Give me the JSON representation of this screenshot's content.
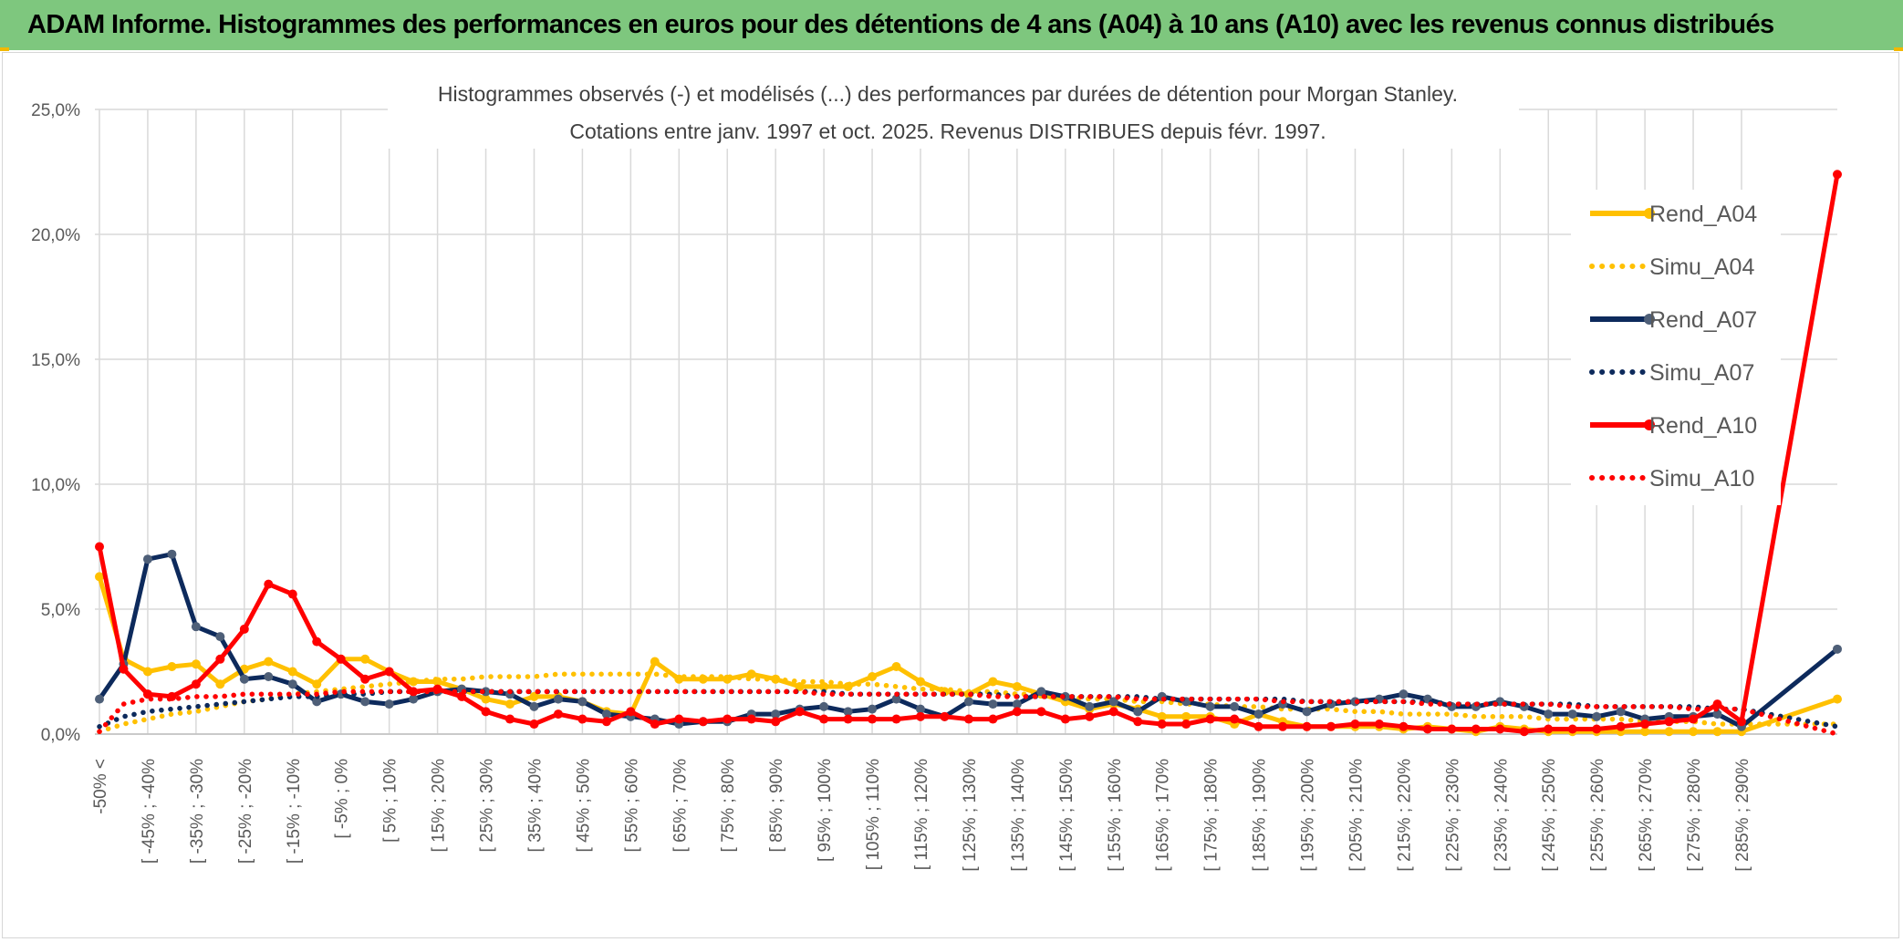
{
  "header": {
    "title": "ADAM Informe. Histogrammes des performances en euros pour des détentions de 4 ans (A04) à 10 ans (A10) avec les revenus connus distribués"
  },
  "colors": {
    "banner": "#7ec77e",
    "rend_a04": "#ffc000",
    "rend_a07": "#0d2a5c",
    "rend_a07_marker": "#4e5f78",
    "rend_a10": "#ff0000",
    "grid": "#d9d9d9",
    "axis_text": "#595959",
    "title_text": "#404040"
  },
  "chart_data": {
    "type": "line",
    "title": "Histogrammes observés (-) et modélisés (...) des performances par durées de détention pour Morgan Stanley.",
    "subtitle": "Cotations entre janv. 1997 et oct. 2025. Revenus DISTRIBUES depuis févr. 1997.",
    "xlabel": "",
    "ylabel": "",
    "ylim": [
      0,
      25
    ],
    "yticks": [
      "0,0%",
      "5,0%",
      "10,0%",
      "15,0%",
      "20,0%",
      "25,0%"
    ],
    "grid": true,
    "legend_position": "right",
    "xtick_labels": [
      "-50% <",
      "[ -45% ; -40%",
      "[ -35% ; -30%",
      "[ -25% ; -20%",
      "[ -15% ; -10%",
      "[ -5% ; 0%",
      "[ 5% ; 10%",
      "[ 15% ; 20%",
      "[ 25% ; 30%",
      "[ 35% ; 40%",
      "[ 45% ; 50%",
      "[ 55% ; 60%",
      "[ 65% ; 70%",
      "[ 75% ; 80%",
      "[ 85% ; 90%",
      "[ 95% ; 100%",
      "[ 105% ; 110%",
      "[ 115% ; 120%",
      "[ 125% ; 130%",
      "[ 135% ; 140%",
      "[ 145% ; 150%",
      "[ 155% ; 160%",
      "[ 165% ; 170%",
      "[ 175% ; 180%",
      "[ 185% ; 190%",
      "[ 195% ; 200%",
      "[ 205% ; 210%",
      "[ 215% ; 220%",
      "[ 225% ; 230%",
      "[ 235% ; 240%",
      "[ 245% ; 250%",
      "[ 255% ; 260%",
      "[ 265% ; 270%",
      "[ 275% ; 280%",
      "[ 285% ; 290%"
    ],
    "n_points": 70,
    "series": [
      {
        "name": "Rend_A04",
        "style": "solid",
        "color": "#ffc000",
        "marker": true,
        "values": [
          6.3,
          3.0,
          2.5,
          2.7,
          2.8,
          2.0,
          2.6,
          2.9,
          2.5,
          2.0,
          3.0,
          3.0,
          2.5,
          2.1,
          2.1,
          1.8,
          1.4,
          1.2,
          1.5,
          1.5,
          1.3,
          0.9,
          0.8,
          2.9,
          2.2,
          2.2,
          2.2,
          2.4,
          2.2,
          1.9,
          1.9,
          1.9,
          2.3,
          2.7,
          2.1,
          1.7,
          1.6,
          2.1,
          1.9,
          1.6,
          1.3,
          1.0,
          1.2,
          1.0,
          0.7,
          0.7,
          0.7,
          0.4,
          0.8,
          0.5,
          0.3,
          0.3,
          0.3,
          0.3,
          0.2,
          0.3,
          0.2,
          0.1,
          0.3,
          0.2,
          0.1,
          0.1,
          0.1,
          0.1,
          0.1,
          0.1,
          0.1,
          0.1,
          0.1,
          1.4
        ]
      },
      {
        "name": "Simu_A04",
        "style": "dotted",
        "color": "#ffc000",
        "marker": false,
        "values": [
          0.1,
          0.4,
          0.6,
          0.8,
          0.9,
          1.1,
          1.3,
          1.4,
          1.6,
          1.7,
          1.8,
          1.9,
          2.0,
          2.1,
          2.2,
          2.2,
          2.3,
          2.3,
          2.3,
          2.4,
          2.4,
          2.4,
          2.4,
          2.4,
          2.3,
          2.3,
          2.3,
          2.2,
          2.2,
          2.1,
          2.1,
          2.0,
          2.0,
          1.9,
          1.8,
          1.8,
          1.7,
          1.7,
          1.6,
          1.6,
          1.5,
          1.4,
          1.4,
          1.3,
          1.3,
          1.2,
          1.2,
          1.1,
          1.1,
          1.0,
          1.0,
          1.0,
          0.9,
          0.9,
          0.8,
          0.8,
          0.8,
          0.7,
          0.7,
          0.7,
          0.6,
          0.6,
          0.6,
          0.6,
          0.5,
          0.5,
          0.5,
          0.4,
          0.4,
          0.4
        ]
      },
      {
        "name": "Rend_A07",
        "style": "solid",
        "color": "#0d2a5c",
        "marker": true,
        "values": [
          1.4,
          2.8,
          7.0,
          7.2,
          4.3,
          3.9,
          2.2,
          2.3,
          2.0,
          1.3,
          1.6,
          1.3,
          1.2,
          1.4,
          1.7,
          1.8,
          1.7,
          1.6,
          1.1,
          1.4,
          1.3,
          0.8,
          0.7,
          0.6,
          0.4,
          0.5,
          0.5,
          0.8,
          0.8,
          1.0,
          1.1,
          0.9,
          1.0,
          1.4,
          1.0,
          0.7,
          1.3,
          1.2,
          1.2,
          1.7,
          1.5,
          1.1,
          1.3,
          0.9,
          1.5,
          1.3,
          1.1,
          1.1,
          0.8,
          1.2,
          0.9,
          1.2,
          1.3,
          1.4,
          1.6,
          1.4,
          1.1,
          1.1,
          1.3,
          1.1,
          0.8,
          0.8,
          0.7,
          0.9,
          0.6,
          0.7,
          0.7,
          0.8,
          0.3,
          3.4
        ]
      },
      {
        "name": "Simu_A07",
        "style": "dotted",
        "color": "#0d2a5c",
        "marker": false,
        "values": [
          0.3,
          0.7,
          0.9,
          1.0,
          1.1,
          1.2,
          1.3,
          1.4,
          1.5,
          1.5,
          1.6,
          1.6,
          1.7,
          1.7,
          1.7,
          1.7,
          1.7,
          1.7,
          1.7,
          1.7,
          1.7,
          1.7,
          1.7,
          1.7,
          1.7,
          1.7,
          1.7,
          1.7,
          1.7,
          1.7,
          1.7,
          1.6,
          1.6,
          1.6,
          1.6,
          1.6,
          1.6,
          1.6,
          1.5,
          1.5,
          1.5,
          1.5,
          1.5,
          1.5,
          1.4,
          1.4,
          1.4,
          1.4,
          1.4,
          1.4,
          1.3,
          1.3,
          1.3,
          1.3,
          1.3,
          1.3,
          1.2,
          1.2,
          1.2,
          1.2,
          1.2,
          1.2,
          1.1,
          1.1,
          1.1,
          1.1,
          1.1,
          1.0,
          1.0,
          0.3
        ]
      },
      {
        "name": "Rend_A10",
        "style": "solid",
        "color": "#ff0000",
        "marker": true,
        "values": [
          7.5,
          2.6,
          1.6,
          1.5,
          2.0,
          3.0,
          4.2,
          6.0,
          5.6,
          3.7,
          3.0,
          2.2,
          2.5,
          1.7,
          1.8,
          1.5,
          0.9,
          0.6,
          0.4,
          0.8,
          0.6,
          0.5,
          0.9,
          0.4,
          0.6,
          0.5,
          0.6,
          0.6,
          0.5,
          0.9,
          0.6,
          0.6,
          0.6,
          0.6,
          0.7,
          0.7,
          0.6,
          0.6,
          0.9,
          0.9,
          0.6,
          0.7,
          0.9,
          0.5,
          0.4,
          0.4,
          0.6,
          0.6,
          0.3,
          0.3,
          0.3,
          0.3,
          0.4,
          0.4,
          0.3,
          0.2,
          0.2,
          0.2,
          0.2,
          0.1,
          0.2,
          0.2,
          0.2,
          0.3,
          0.4,
          0.5,
          0.6,
          1.2,
          0.5,
          22.4
        ]
      },
      {
        "name": "Simu_A10",
        "style": "dotted",
        "color": "#ff0000",
        "marker": false,
        "values": [
          0.1,
          1.2,
          1.4,
          1.4,
          1.5,
          1.5,
          1.6,
          1.6,
          1.6,
          1.6,
          1.7,
          1.7,
          1.7,
          1.7,
          1.7,
          1.7,
          1.7,
          1.7,
          1.7,
          1.7,
          1.7,
          1.7,
          1.7,
          1.7,
          1.7,
          1.7,
          1.7,
          1.7,
          1.7,
          1.7,
          1.6,
          1.6,
          1.6,
          1.6,
          1.6,
          1.6,
          1.6,
          1.5,
          1.5,
          1.5,
          1.5,
          1.5,
          1.5,
          1.4,
          1.4,
          1.4,
          1.4,
          1.4,
          1.4,
          1.3,
          1.3,
          1.3,
          1.3,
          1.3,
          1.3,
          1.2,
          1.2,
          1.2,
          1.2,
          1.2,
          1.2,
          1.1,
          1.1,
          1.1,
          1.1,
          1.1,
          1.0,
          1.0,
          1.0,
          0.0
        ]
      }
    ]
  }
}
